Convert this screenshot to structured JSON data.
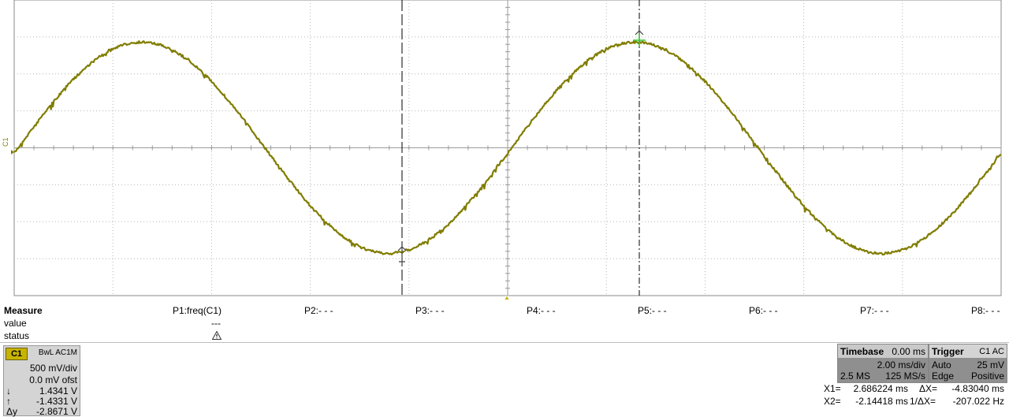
{
  "scope": {
    "channel_marker": "C1",
    "grid_divisions": {
      "horizontal": 10,
      "vertical": 8
    },
    "trace_color": "#807d00",
    "cursor_marker_color": "#33cc33",
    "waveform": {
      "type": "sine",
      "volts_per_div": 0.5,
      "amplitude_volts": 1.43,
      "period_ms": 10.0
    }
  },
  "measure": {
    "heading": "Measure",
    "row_value": "value",
    "row_status": "status",
    "params": [
      "P1:freq(C1)",
      "P2:- - -",
      "P3:- - -",
      "P4:- - -",
      "P5:- - -",
      "P6:- - -",
      "P7:- - -",
      "P8:- - -"
    ],
    "p1_value": "---",
    "p1_status_icon": "warning-icon"
  },
  "channel": {
    "tag": "C1",
    "bw": "BwL AC1M",
    "vdiv": "500 mV/div",
    "offset": "0.0 mV ofst",
    "c1_symbol": "↓",
    "c1_value": "1.4341 V",
    "c2_symbol": "↑",
    "c2_value": "-1.4331 V",
    "dy_label": "Δy",
    "dy_value": "-2.8671 V"
  },
  "timebase": {
    "title": "Timebase",
    "delay": "0.00 ms",
    "tdiv": "2.00 ms/div",
    "samples": "2.5 MS",
    "rate": "125 MS/s"
  },
  "trigger": {
    "title": "Trigger",
    "source": "C1 AC",
    "mode": "Auto",
    "level": "25 mV",
    "type": "Edge",
    "slope": "Positive"
  },
  "cursors": {
    "x1_label": "X1=",
    "x1_value": "2.686224 ms",
    "dx_label": "ΔX=",
    "dx_value": "-4.83040 ms",
    "x2_label": "X2=",
    "x2_value": "-2.14418 ms",
    "inv_dx_label": "1/ΔX=",
    "inv_dx_value": "-207.022 Hz"
  }
}
